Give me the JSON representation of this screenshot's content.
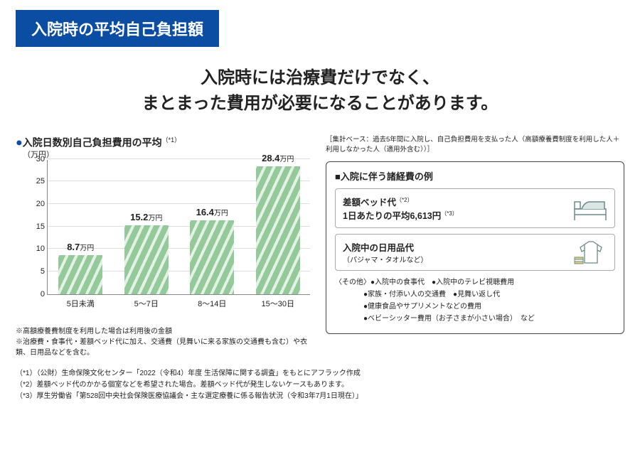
{
  "banner": "入院時の平均自己負担額",
  "headline_l1": "入院時には治療費だけでなく、",
  "headline_l2": "まとまった費用が必要になることがあります。",
  "chart": {
    "title_pre": "●",
    "title": "入院日数別自己負担費用の平均",
    "title_sup": "（*1）",
    "ylabel": "（万円）",
    "ylim_max": 30,
    "ytick_step": 5,
    "categories": [
      "5日未満",
      "5～7日",
      "8～14日",
      "15～30日"
    ],
    "values": [
      8.7,
      15.2,
      16.4,
      28.4
    ],
    "value_unit": "万円",
    "bar_color": "#94c99a"
  },
  "chart_notes": {
    "n1": "※高額療養費制度を利用した場合は利用後の金額",
    "n2": "※治療費・食事代・差額ベッド代に加え、交通費（見舞いに来る家族の交通費も含む）や衣類、日用品などを含む。"
  },
  "sample_note": "［集計ベース：過去5年間に入院し、自己負担費用を支払った人（高額療養費制度を利用した人＋利用しなかった人（適用外含む））］",
  "box": {
    "title": "■入院に伴う諸経費の例",
    "item1": {
      "t1": "差額ベッド代",
      "t1_sup": "（*2）",
      "t2": "1日あたりの平均6,613円",
      "t2_sup": "（*3）"
    },
    "item2": {
      "t1": "入院中の日用品代",
      "sub": "（パジャマ・タオルなど）"
    },
    "other_hd": "〈その他〉",
    "other_items": [
      "●入院中の食事代　●入院中のテレビ視聴費用",
      "●家族・付添い人の交通費　●見舞い返し代",
      "●健康食品やサプリメントなどの費用",
      "●ベビーシッター費用（お子さまが小さい場合）　など"
    ]
  },
  "footnotes": {
    "f1": "（*1）（公財）生命保険文化センター「2022（令和4）年度 生活保障に関する調査」をもとにアフラック作成",
    "f2": "（*2）差額ベッド代のかかる個室などを希望された場合。差額ベッド代が発生しないケースもあります。",
    "f3": "（*3）厚生労働省「第528回中央社会保険医療協議会・主な選定療養に係る報告状況（令和3年7月1日現在）」"
  }
}
